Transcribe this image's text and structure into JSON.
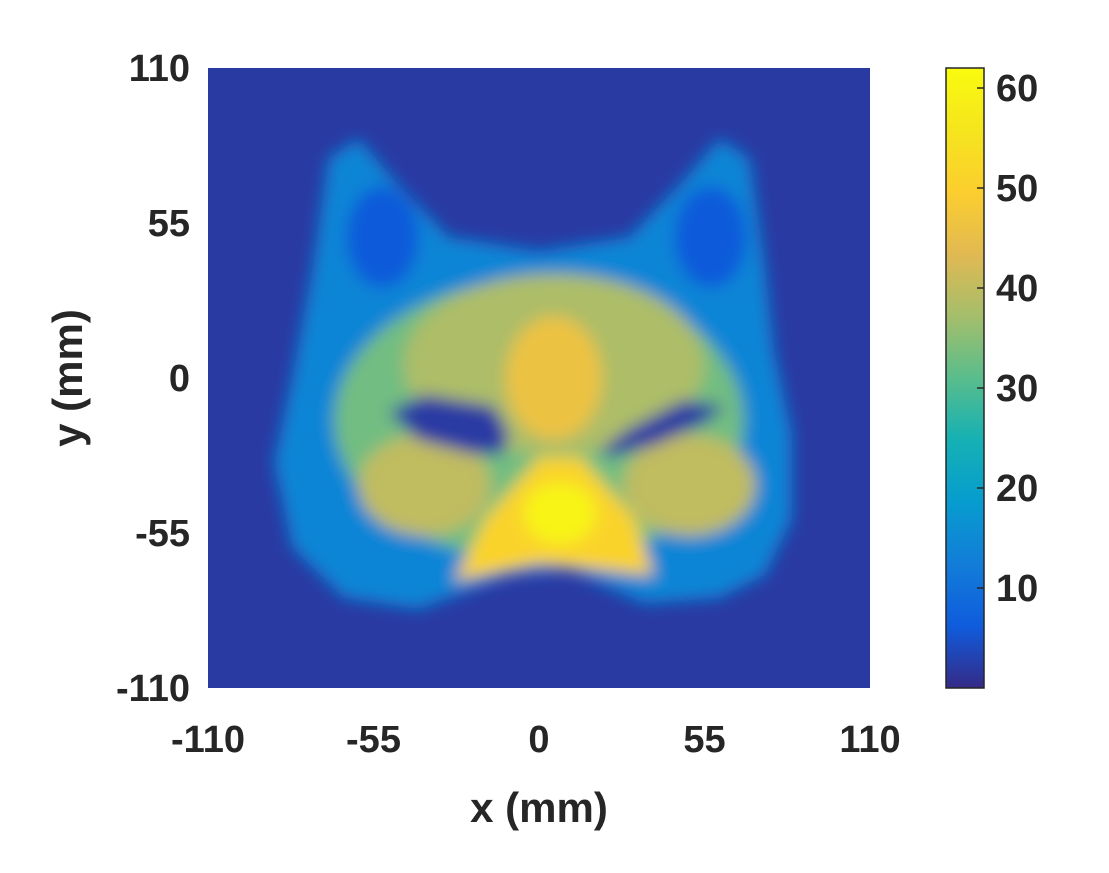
{
  "chart_data": {
    "type": "heatmap",
    "title": "",
    "xlabel": "x (mm)",
    "ylabel": "y (mm)",
    "xlim": [
      -110,
      110
    ],
    "ylim": [
      -110,
      110
    ],
    "x_ticks": [
      "-110",
      "-55",
      "0",
      "55",
      "110"
    ],
    "y_ticks": [
      "110",
      "55",
      "0",
      "-55",
      "-110"
    ],
    "colorbar": {
      "min": 0,
      "max": 62,
      "ticks": [
        "10",
        "20",
        "30",
        "40",
        "50",
        "60"
      ],
      "colormap": "parula"
    },
    "background_value": 2,
    "regions": [
      {
        "name": "face outline",
        "level": 14,
        "polygon": [
          [
            -70,
            78
          ],
          [
            -60,
            85
          ],
          [
            -48,
            70
          ],
          [
            -30,
            50
          ],
          [
            0,
            45
          ],
          [
            30,
            50
          ],
          [
            48,
            70
          ],
          [
            60,
            85
          ],
          [
            70,
            78
          ],
          [
            75,
            40
          ],
          [
            78,
            10
          ],
          [
            84,
            -20
          ],
          [
            84,
            -50
          ],
          [
            75,
            -70
          ],
          [
            60,
            -78
          ],
          [
            35,
            -80
          ],
          [
            10,
            -68
          ],
          [
            -10,
            -70
          ],
          [
            -40,
            -82
          ],
          [
            -65,
            -78
          ],
          [
            -82,
            -60
          ],
          [
            -88,
            -30
          ],
          [
            -82,
            0
          ],
          [
            -75,
            40
          ]
        ]
      },
      {
        "name": "left ear inner",
        "level": 6,
        "ellipse": {
          "cx": -52,
          "cy": 50,
          "rx": 12,
          "ry": 18
        }
      },
      {
        "name": "right ear inner",
        "level": 6,
        "ellipse": {
          "cx": 57,
          "cy": 50,
          "rx": 12,
          "ry": 18
        }
      },
      {
        "name": "face",
        "level": 33,
        "ellipse": {
          "cx": 0,
          "cy": -15,
          "rx": 68,
          "ry": 50
        }
      },
      {
        "name": "forehead",
        "level": 38,
        "ellipse": {
          "cx": 5,
          "cy": 5,
          "rx": 50,
          "ry": 32
        }
      },
      {
        "name": "center stripe",
        "level": 46,
        "ellipse": {
          "cx": 5,
          "cy": 0,
          "rx": 16,
          "ry": 22
        }
      },
      {
        "name": "left cheek",
        "level": 40,
        "ellipse": {
          "cx": -38,
          "cy": -38,
          "rx": 22,
          "ry": 18
        }
      },
      {
        "name": "right cheek",
        "level": 40,
        "ellipse": {
          "cx": 50,
          "cy": -38,
          "rx": 22,
          "ry": 18
        }
      },
      {
        "name": "muzzle",
        "level": 51,
        "polygon": [
          [
            -28,
            -72
          ],
          [
            -18,
            -50
          ],
          [
            0,
            -28
          ],
          [
            14,
            -28
          ],
          [
            32,
            -50
          ],
          [
            38,
            -70
          ],
          [
            20,
            -68
          ],
          [
            0,
            -66
          ]
        ]
      },
      {
        "name": "nose hotspot",
        "level": 60,
        "ellipse": {
          "cx": 7,
          "cy": -48,
          "rx": 12,
          "ry": 11
        }
      },
      {
        "name": "left eye hole",
        "level": 2,
        "polygon": [
          [
            -50,
            -12
          ],
          [
            -38,
            -6
          ],
          [
            -15,
            -10
          ],
          [
            -10,
            -20
          ],
          [
            -12,
            -27
          ],
          [
            -22,
            -27
          ],
          [
            -40,
            -22
          ]
        ]
      },
      {
        "name": "right eye hole",
        "level": 2,
        "polygon": [
          [
            20,
            -26
          ],
          [
            30,
            -18
          ],
          [
            48,
            -8
          ],
          [
            62,
            -10
          ],
          [
            55,
            -16
          ],
          [
            38,
            -24
          ],
          [
            24,
            -28
          ]
        ]
      }
    ]
  }
}
